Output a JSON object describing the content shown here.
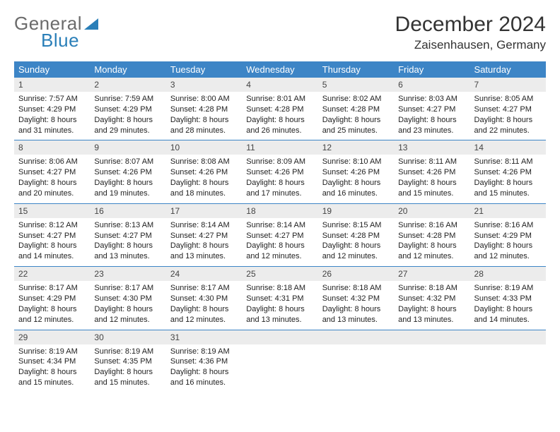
{
  "logo": {
    "gray": "General",
    "blue": "Blue"
  },
  "title": "December 2024",
  "location": "Zaisenhausen, Germany",
  "colors": {
    "header_bg": "#3d85c6",
    "daynum_bg": "#ececec",
    "divider": "#3d85c6",
    "logo_gray": "#6b6b6b",
    "logo_blue": "#2a7fb8"
  },
  "day_headers": [
    "Sunday",
    "Monday",
    "Tuesday",
    "Wednesday",
    "Thursday",
    "Friday",
    "Saturday"
  ],
  "days": [
    {
      "n": "1",
      "sr": "7:57 AM",
      "ss": "4:29 PM",
      "dl": "8 hours and 31 minutes."
    },
    {
      "n": "2",
      "sr": "7:59 AM",
      "ss": "4:29 PM",
      "dl": "8 hours and 29 minutes."
    },
    {
      "n": "3",
      "sr": "8:00 AM",
      "ss": "4:28 PM",
      "dl": "8 hours and 28 minutes."
    },
    {
      "n": "4",
      "sr": "8:01 AM",
      "ss": "4:28 PM",
      "dl": "8 hours and 26 minutes."
    },
    {
      "n": "5",
      "sr": "8:02 AM",
      "ss": "4:28 PM",
      "dl": "8 hours and 25 minutes."
    },
    {
      "n": "6",
      "sr": "8:03 AM",
      "ss": "4:27 PM",
      "dl": "8 hours and 23 minutes."
    },
    {
      "n": "7",
      "sr": "8:05 AM",
      "ss": "4:27 PM",
      "dl": "8 hours and 22 minutes."
    },
    {
      "n": "8",
      "sr": "8:06 AM",
      "ss": "4:27 PM",
      "dl": "8 hours and 20 minutes."
    },
    {
      "n": "9",
      "sr": "8:07 AM",
      "ss": "4:26 PM",
      "dl": "8 hours and 19 minutes."
    },
    {
      "n": "10",
      "sr": "8:08 AM",
      "ss": "4:26 PM",
      "dl": "8 hours and 18 minutes."
    },
    {
      "n": "11",
      "sr": "8:09 AM",
      "ss": "4:26 PM",
      "dl": "8 hours and 17 minutes."
    },
    {
      "n": "12",
      "sr": "8:10 AM",
      "ss": "4:26 PM",
      "dl": "8 hours and 16 minutes."
    },
    {
      "n": "13",
      "sr": "8:11 AM",
      "ss": "4:26 PM",
      "dl": "8 hours and 15 minutes."
    },
    {
      "n": "14",
      "sr": "8:11 AM",
      "ss": "4:26 PM",
      "dl": "8 hours and 15 minutes."
    },
    {
      "n": "15",
      "sr": "8:12 AM",
      "ss": "4:27 PM",
      "dl": "8 hours and 14 minutes."
    },
    {
      "n": "16",
      "sr": "8:13 AM",
      "ss": "4:27 PM",
      "dl": "8 hours and 13 minutes."
    },
    {
      "n": "17",
      "sr": "8:14 AM",
      "ss": "4:27 PM",
      "dl": "8 hours and 13 minutes."
    },
    {
      "n": "18",
      "sr": "8:14 AM",
      "ss": "4:27 PM",
      "dl": "8 hours and 12 minutes."
    },
    {
      "n": "19",
      "sr": "8:15 AM",
      "ss": "4:28 PM",
      "dl": "8 hours and 12 minutes."
    },
    {
      "n": "20",
      "sr": "8:16 AM",
      "ss": "4:28 PM",
      "dl": "8 hours and 12 minutes."
    },
    {
      "n": "21",
      "sr": "8:16 AM",
      "ss": "4:29 PM",
      "dl": "8 hours and 12 minutes."
    },
    {
      "n": "22",
      "sr": "8:17 AM",
      "ss": "4:29 PM",
      "dl": "8 hours and 12 minutes."
    },
    {
      "n": "23",
      "sr": "8:17 AM",
      "ss": "4:30 PM",
      "dl": "8 hours and 12 minutes."
    },
    {
      "n": "24",
      "sr": "8:17 AM",
      "ss": "4:30 PM",
      "dl": "8 hours and 12 minutes."
    },
    {
      "n": "25",
      "sr": "8:18 AM",
      "ss": "4:31 PM",
      "dl": "8 hours and 13 minutes."
    },
    {
      "n": "26",
      "sr": "8:18 AM",
      "ss": "4:32 PM",
      "dl": "8 hours and 13 minutes."
    },
    {
      "n": "27",
      "sr": "8:18 AM",
      "ss": "4:32 PM",
      "dl": "8 hours and 13 minutes."
    },
    {
      "n": "28",
      "sr": "8:19 AM",
      "ss": "4:33 PM",
      "dl": "8 hours and 14 minutes."
    },
    {
      "n": "29",
      "sr": "8:19 AM",
      "ss": "4:34 PM",
      "dl": "8 hours and 15 minutes."
    },
    {
      "n": "30",
      "sr": "8:19 AM",
      "ss": "4:35 PM",
      "dl": "8 hours and 15 minutes."
    },
    {
      "n": "31",
      "sr": "8:19 AM",
      "ss": "4:36 PM",
      "dl": "8 hours and 16 minutes."
    }
  ],
  "labels": {
    "sunrise": "Sunrise: ",
    "sunset": "Sunset: ",
    "daylight": "Daylight: "
  },
  "layout": {
    "columns": 7,
    "trailing_empty": 4
  }
}
